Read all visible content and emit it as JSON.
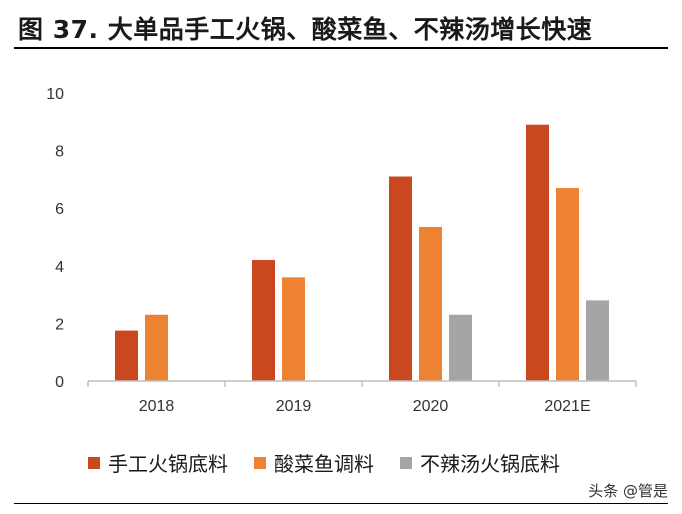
{
  "figure": {
    "title": "图 37. 大单品手工火锅、酸菜鱼、不辣汤增长快速"
  },
  "watermark": "头条 @管是",
  "colors": {
    "series_1": "#c9481f",
    "series_2": "#ee8233",
    "series_3": "#a5a5a5"
  },
  "chart_data": {
    "type": "bar",
    "categories": [
      "2018",
      "2019",
      "2020",
      "2021E"
    ],
    "series": [
      {
        "name": "手工火锅底料",
        "values": [
          1.75,
          4.2,
          7.1,
          8.9
        ]
      },
      {
        "name": "酸菜鱼调料",
        "values": [
          2.3,
          3.6,
          5.35,
          6.7
        ]
      },
      {
        "name": "不辣汤火锅底料",
        "values": [
          null,
          null,
          2.3,
          2.8
        ]
      }
    ],
    "title": "",
    "xlabel": "",
    "ylabel": "",
    "ylim": [
      0,
      10
    ],
    "yticks": [
      0,
      2,
      4,
      6,
      8,
      10
    ],
    "grid": false,
    "legend": "bottom"
  }
}
